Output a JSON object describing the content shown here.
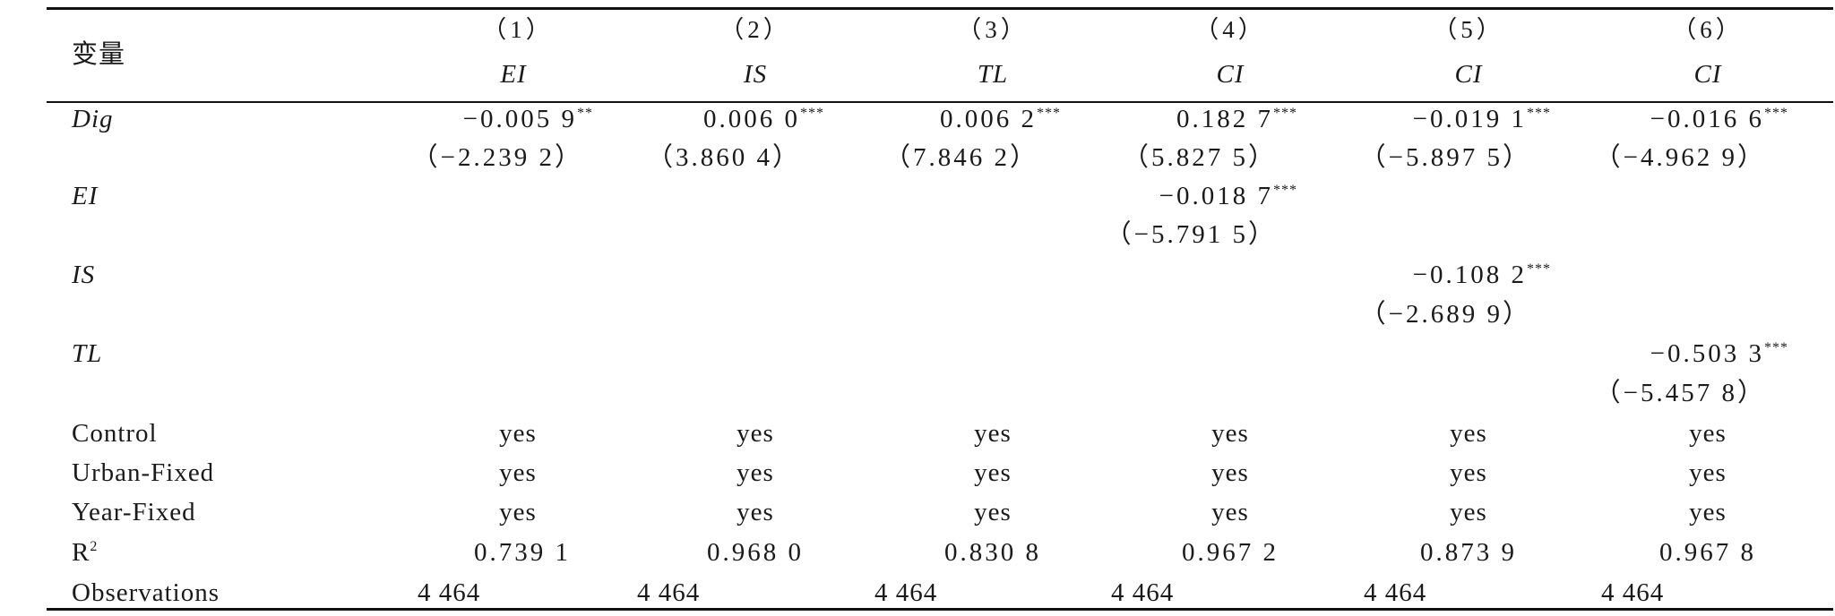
{
  "table": {
    "header_var": "变量",
    "columns": [
      {
        "num": "（1）",
        "dep": "EI"
      },
      {
        "num": "（2）",
        "dep": "IS"
      },
      {
        "num": "（3）",
        "dep": "TL"
      },
      {
        "num": "（4）",
        "dep": "CI"
      },
      {
        "num": "（5）",
        "dep": "CI"
      },
      {
        "num": "（6）",
        "dep": "CI"
      }
    ],
    "rows": [
      {
        "var": "Dig",
        "coef": [
          "−0.005 9",
          "0.006 0",
          "0.006 2",
          "0.182 7",
          "−0.019 1",
          "−0.016 6"
        ],
        "stars": [
          "**",
          "***",
          "***",
          "***",
          "***",
          "***"
        ],
        "t": [
          "（−2.239 2）",
          "（3.860 4）",
          "（7.846 2）",
          "（5.827 5）",
          "（−5.897 5）",
          "（−4.962 9）"
        ]
      },
      {
        "var": "EI",
        "coef": "−0.018 7",
        "stars": "***",
        "t": "（−5.791 5）"
      },
      {
        "var": "IS",
        "coef": "−0.108 2",
        "stars": "***",
        "t": "（−2.689 9）"
      },
      {
        "var": "TL",
        "coef": "−0.503 3",
        "stars": "***",
        "t": "（−5.457 8）"
      }
    ],
    "control_rows": [
      {
        "label": "Control",
        "values": [
          "yes",
          "yes",
          "yes",
          "yes",
          "yes",
          "yes"
        ]
      },
      {
        "label": "Urban-Fixed",
        "values": [
          "yes",
          "yes",
          "yes",
          "yes",
          "yes",
          "yes"
        ]
      },
      {
        "label": "Year-Fixed",
        "values": [
          "yes",
          "yes",
          "yes",
          "yes",
          "yes",
          "yes"
        ]
      }
    ],
    "r2": {
      "label": "R",
      "sup": "2",
      "values": [
        "0.739 1",
        "0.968 0",
        "0.830 8",
        "0.967 2",
        "0.873 9",
        "0.967 8"
      ]
    },
    "obs": {
      "label": "Observations",
      "values": [
        "4 464",
        "4 464",
        "4 464",
        "4 464",
        "4 464",
        "4 464"
      ]
    }
  }
}
